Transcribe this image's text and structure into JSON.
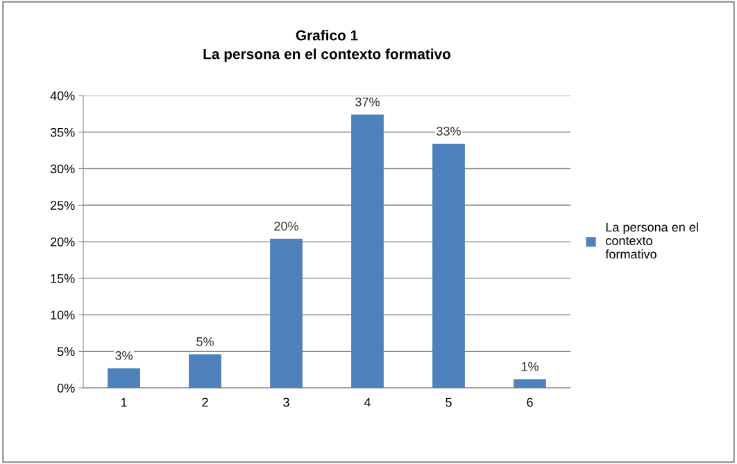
{
  "chart_data": {
    "type": "bar",
    "title": "Grafico 1\nLa persona en el contexto formativo",
    "categories": [
      "1",
      "2",
      "3",
      "4",
      "5",
      "6"
    ],
    "series": [
      {
        "name": "La persona en el contexto formativo",
        "color": "#4f81bd",
        "values": [
          2.7,
          4.6,
          20.4,
          37.4,
          33.4,
          1.2
        ],
        "value_labels": [
          "3%",
          "5%",
          "20%",
          "37%",
          "33%",
          "1%"
        ]
      }
    ],
    "ylim": [
      0,
      40
    ],
    "yticks": [
      {
        "value": 0,
        "label": "0%"
      },
      {
        "value": 5,
        "label": "5%"
      },
      {
        "value": 10,
        "label": "10%"
      },
      {
        "value": 15,
        "label": "15%"
      },
      {
        "value": 20,
        "label": "20%"
      },
      {
        "value": 25,
        "label": "25%"
      },
      {
        "value": 30,
        "label": "30%"
      },
      {
        "value": 35,
        "label": "35%"
      },
      {
        "value": 40,
        "label": "40%"
      }
    ],
    "grid": "y",
    "legend": "right"
  }
}
